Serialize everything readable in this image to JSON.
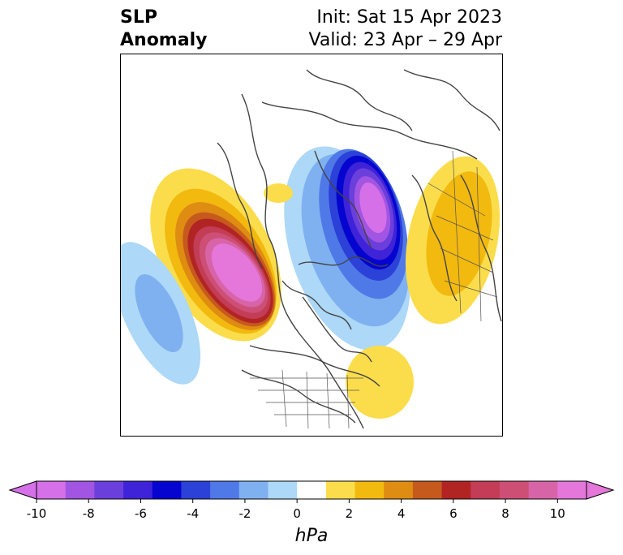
{
  "title": {
    "left_line1": "SLP",
    "left_line2": "Anomaly",
    "right_line1": "Init: Sat 15 Apr 2023",
    "right_line2": "Valid: 23 Apr – 29 Apr"
  },
  "colorbar": {
    "label": "hPa",
    "ticks": [
      "-10",
      "-8",
      "-6",
      "-4",
      "-2",
      "0",
      "2",
      "4",
      "6",
      "8",
      "10"
    ],
    "colors": [
      "#d670e8",
      "#a255e3",
      "#6a3fdb",
      "#3f23d8",
      "#0505cf",
      "#2b41d8",
      "#5079e8",
      "#7fb1f1",
      "#add8f7",
      "#ffffff",
      "#fbdd4c",
      "#f2b90f",
      "#de8c12",
      "#c65a1c",
      "#b22424",
      "#c23d55",
      "#cd4f76",
      "#d864a8",
      "#e477d9"
    ]
  }
}
